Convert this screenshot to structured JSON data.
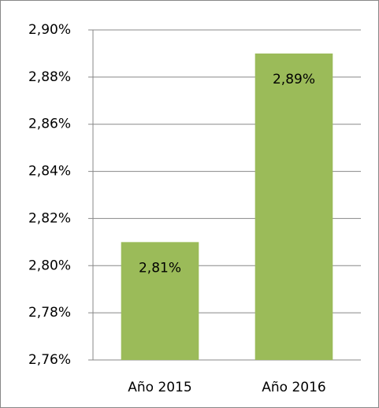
{
  "chart_data": {
    "type": "bar",
    "categories": [
      "Año 2015",
      "Año 2016"
    ],
    "values": [
      2.81,
      2.89
    ],
    "value_labels": [
      "2,81%",
      "2,89%"
    ],
    "color": "#9bbb59",
    "ylim": [
      2.76,
      2.9
    ],
    "yticks": [
      {
        "value": 2.76,
        "label": "2,76%"
      },
      {
        "value": 2.78,
        "label": "2,78%"
      },
      {
        "value": 2.8,
        "label": "2,80%"
      },
      {
        "value": 2.82,
        "label": "2,82%"
      },
      {
        "value": 2.84,
        "label": "2,84%"
      },
      {
        "value": 2.86,
        "label": "2,86%"
      },
      {
        "value": 2.88,
        "label": "2,88%"
      },
      {
        "value": 2.9,
        "label": "2,90%"
      }
    ],
    "grid": true
  }
}
